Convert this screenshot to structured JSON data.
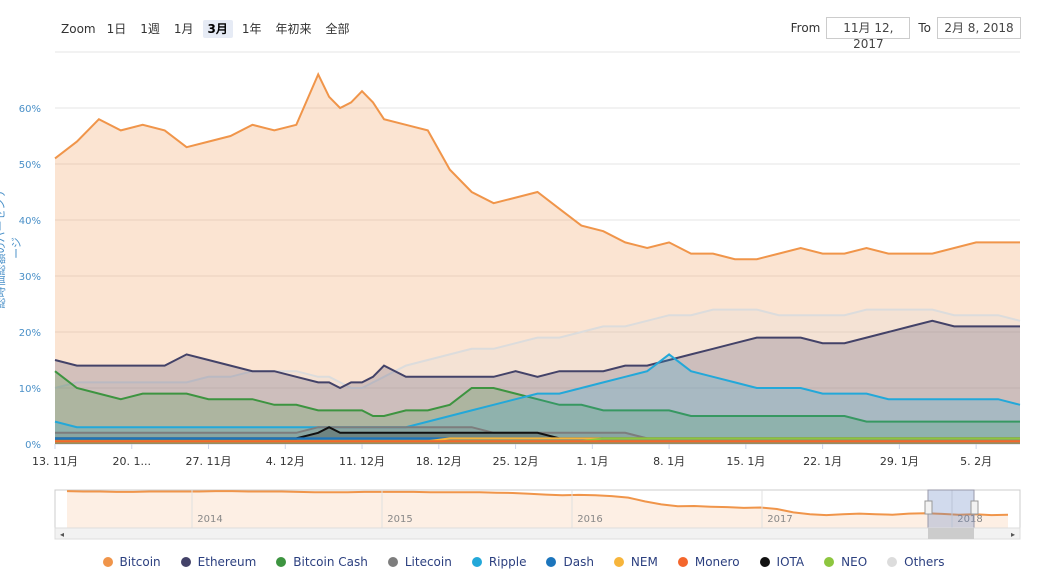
{
  "toolbar": {
    "zoom_label": "Zoom",
    "zoom_buttons": [
      "1日",
      "1週",
      "1月",
      "3月",
      "1年",
      "年初来",
      "全部"
    ],
    "selected_zoom": "3月",
    "from_label": "From",
    "from_value": "11月 12, 2017",
    "to_label": "To",
    "to_value": "2月 8, 2018"
  },
  "colors": {
    "Bitcoin": "#f0954a",
    "Ethereum": "#434268",
    "Bitcoin Cash": "#3d9440",
    "Litecoin": "#7d7d7d",
    "Ripple": "#23a8d9",
    "Dash": "#1c75bc",
    "NEM": "#f7b53b",
    "Monero": "#f4662c",
    "IOTA": "#111111",
    "NEO": "#8dc63f",
    "Others": "#dcdcdc",
    "axis_label": "#4a90c8"
  },
  "chart_data": {
    "type": "area",
    "ylabel": "総時価総額のパーセンテージ",
    "ylim": [
      0,
      70
    ],
    "yticks": [
      "0%",
      "10%",
      "20%",
      "30%",
      "40%",
      "50%",
      "60%"
    ],
    "ytick_values": [
      0,
      10,
      20,
      30,
      40,
      50,
      60
    ],
    "xlim": [
      0,
      88
    ],
    "xticks": [
      {
        "label": "13. 11月",
        "day": 0
      },
      {
        "label": "20. 1...",
        "day": 7
      },
      {
        "label": "27. 11月",
        "day": 14
      },
      {
        "label": "4. 12月",
        "day": 21
      },
      {
        "label": "11. 12月",
        "day": 28
      },
      {
        "label": "18. 12月",
        "day": 35
      },
      {
        "label": "25. 12月",
        "day": 42
      },
      {
        "label": "1. 1月",
        "day": 49
      },
      {
        "label": "8. 1月",
        "day": 56
      },
      {
        "label": "15. 1月",
        "day": 63
      },
      {
        "label": "22. 1月",
        "day": 70
      },
      {
        "label": "29. 1月",
        "day": 77
      },
      {
        "label": "5. 2月",
        "day": 84
      }
    ],
    "x_days": [
      0,
      2,
      4,
      6,
      8,
      10,
      12,
      14,
      16,
      18,
      20,
      22,
      24,
      25,
      26,
      27,
      28,
      29,
      30,
      32,
      34,
      36,
      38,
      40,
      42,
      44,
      46,
      48,
      50,
      52,
      54,
      56,
      58,
      60,
      62,
      64,
      66,
      68,
      70,
      72,
      74,
      76,
      78,
      80,
      82,
      84,
      86,
      88
    ],
    "series": [
      {
        "name": "Bitcoin",
        "values": [
          51,
          54,
          58,
          56,
          57,
          56,
          53,
          54,
          55,
          57,
          56,
          57,
          66,
          62,
          60,
          61,
          63,
          61,
          58,
          57,
          56,
          49,
          45,
          43,
          44,
          45,
          42,
          39,
          38,
          36,
          35,
          36,
          34,
          34,
          33,
          33,
          34,
          35,
          34,
          34,
          35,
          34,
          34,
          34,
          35,
          36,
          36,
          36
        ]
      },
      {
        "name": "Ethereum",
        "values": [
          15,
          14,
          14,
          14,
          14,
          14,
          16,
          15,
          14,
          13,
          13,
          12,
          11,
          11,
          10,
          11,
          11,
          12,
          14,
          12,
          12,
          12,
          12,
          12,
          13,
          12,
          13,
          13,
          13,
          14,
          14,
          15,
          16,
          17,
          18,
          19,
          19,
          19,
          18,
          18,
          19,
          20,
          21,
          22,
          21,
          21,
          21,
          21
        ]
      },
      {
        "name": "Bitcoin Cash",
        "values": [
          13,
          10,
          9,
          8,
          9,
          9,
          9,
          8,
          8,
          8,
          7,
          7,
          6,
          6,
          6,
          6,
          6,
          5,
          5,
          6,
          6,
          7,
          10,
          10,
          9,
          8,
          7,
          7,
          6,
          6,
          6,
          6,
          5,
          5,
          5,
          5,
          5,
          5,
          5,
          5,
          4,
          4,
          4,
          4,
          4,
          4,
          4,
          4
        ]
      },
      {
        "name": "Litecoin",
        "values": [
          2,
          2,
          2,
          2,
          2,
          2,
          2,
          2,
          2,
          2,
          2,
          2,
          3,
          3,
          3,
          3,
          3,
          3,
          3,
          3,
          3,
          3,
          3,
          2,
          2,
          2,
          2,
          2,
          2,
          2,
          1,
          1,
          1,
          1,
          1,
          1,
          1,
          1,
          1,
          1,
          1,
          1,
          1,
          1,
          1,
          1,
          1,
          1
        ]
      },
      {
        "name": "Ripple",
        "values": [
          4,
          3,
          3,
          3,
          3,
          3,
          3,
          3,
          3,
          3,
          3,
          3,
          3,
          3,
          3,
          3,
          3,
          3,
          3,
          3,
          4,
          5,
          6,
          7,
          8,
          9,
          9,
          10,
          11,
          12,
          13,
          16,
          13,
          12,
          11,
          10,
          10,
          10,
          9,
          9,
          9,
          8,
          8,
          8,
          8,
          8,
          8,
          7
        ]
      },
      {
        "name": "Dash",
        "values": [
          1,
          1,
          1,
          1,
          1,
          1,
          1,
          1,
          1,
          1,
          1,
          1,
          1,
          1,
          1,
          1,
          1,
          1,
          1,
          1,
          1,
          1,
          1,
          1,
          1,
          1,
          1,
          1,
          1,
          1,
          1,
          1,
          1,
          1,
          1,
          1,
          1,
          1,
          1,
          1,
          1,
          1,
          1,
          1,
          1,
          1,
          1,
          1
        ]
      },
      {
        "name": "NEM",
        "values": [
          0.5,
          0.5,
          0.5,
          0.5,
          0.5,
          0.5,
          0.5,
          0.5,
          0.5,
          0.5,
          0.5,
          0.5,
          0.5,
          0.5,
          0.5,
          0.5,
          0.5,
          0.5,
          0.5,
          0.5,
          0.5,
          1,
          1,
          1,
          1,
          1,
          1,
          1,
          1,
          1,
          1,
          1,
          1,
          1,
          1,
          1,
          1,
          1,
          1,
          1,
          1,
          1,
          1,
          1,
          1,
          1,
          1,
          1
        ]
      },
      {
        "name": "Monero",
        "values": [
          0.5,
          0.5,
          0.5,
          0.5,
          0.5,
          0.5,
          0.5,
          0.5,
          0.5,
          0.5,
          0.5,
          0.5,
          0.5,
          0.5,
          0.5,
          0.5,
          0.5,
          0.5,
          0.5,
          0.5,
          0.5,
          0.5,
          0.5,
          0.5,
          0.5,
          0.5,
          0.5,
          0.5,
          0.5,
          0.5,
          0.5,
          0.5,
          0.5,
          0.5,
          0.5,
          0.5,
          0.5,
          0.5,
          0.5,
          0.5,
          0.5,
          0.5,
          0.5,
          0.5,
          0.5,
          0.5,
          0.5,
          0.5
        ]
      },
      {
        "name": "IOTA",
        "values": [
          1,
          1,
          1,
          1,
          1,
          1,
          1,
          1,
          1,
          1,
          1,
          1,
          2,
          3,
          2,
          2,
          2,
          2,
          2,
          2,
          2,
          2,
          2,
          2,
          2,
          2,
          1,
          1,
          1,
          1,
          1,
          1,
          1,
          1,
          1,
          1,
          1,
          1,
          1,
          1,
          1,
          1,
          1,
          1,
          1,
          1,
          1,
          1
        ]
      },
      {
        "name": "NEO",
        "values": [
          0.5,
          0.5,
          0.5,
          0.5,
          0.5,
          0.5,
          0.5,
          0.5,
          0.5,
          0.5,
          0.5,
          0.5,
          0.5,
          0.5,
          0.5,
          0.5,
          0.5,
          0.5,
          0.5,
          0.5,
          0.5,
          0.5,
          0.5,
          0.5,
          0.5,
          0.5,
          0.5,
          0.5,
          1,
          1,
          1,
          1,
          1,
          1,
          1,
          1,
          1,
          1,
          1,
          1,
          1,
          1,
          1,
          1,
          1,
          1,
          1,
          1
        ]
      },
      {
        "name": "Others",
        "values": [
          10,
          11,
          11,
          11,
          11,
          11,
          11,
          12,
          12,
          13,
          13,
          13,
          12,
          12,
          11,
          10,
          10,
          11,
          12,
          14,
          15,
          16,
          17,
          17,
          18,
          19,
          19,
          20,
          21,
          21,
          22,
          23,
          23,
          24,
          24,
          24,
          23,
          23,
          23,
          23,
          24,
          24,
          24,
          24,
          23,
          23,
          23,
          22
        ]
      }
    ],
    "navigator": {
      "series": "Bitcoin",
      "year_labels": [
        "2014",
        "2015",
        "2016",
        "2017",
        "2018"
      ],
      "values": [
        97,
        96,
        96,
        95,
        95,
        96,
        96,
        96,
        96,
        97,
        97,
        96,
        96,
        96,
        95,
        94,
        94,
        94,
        95,
        95,
        95,
        95,
        94,
        94,
        94,
        94,
        93,
        92,
        90,
        88,
        86,
        87,
        86,
        84,
        80,
        70,
        62,
        57,
        58,
        56,
        55,
        53,
        54,
        50,
        41,
        36,
        34,
        36,
        38,
        36,
        35,
        38,
        39,
        37,
        35,
        36,
        34,
        35
      ]
    }
  },
  "legend_items": [
    "Bitcoin",
    "Ethereum",
    "Bitcoin Cash",
    "Litecoin",
    "Ripple",
    "Dash",
    "NEM",
    "Monero",
    "IOTA",
    "NEO",
    "Others"
  ]
}
